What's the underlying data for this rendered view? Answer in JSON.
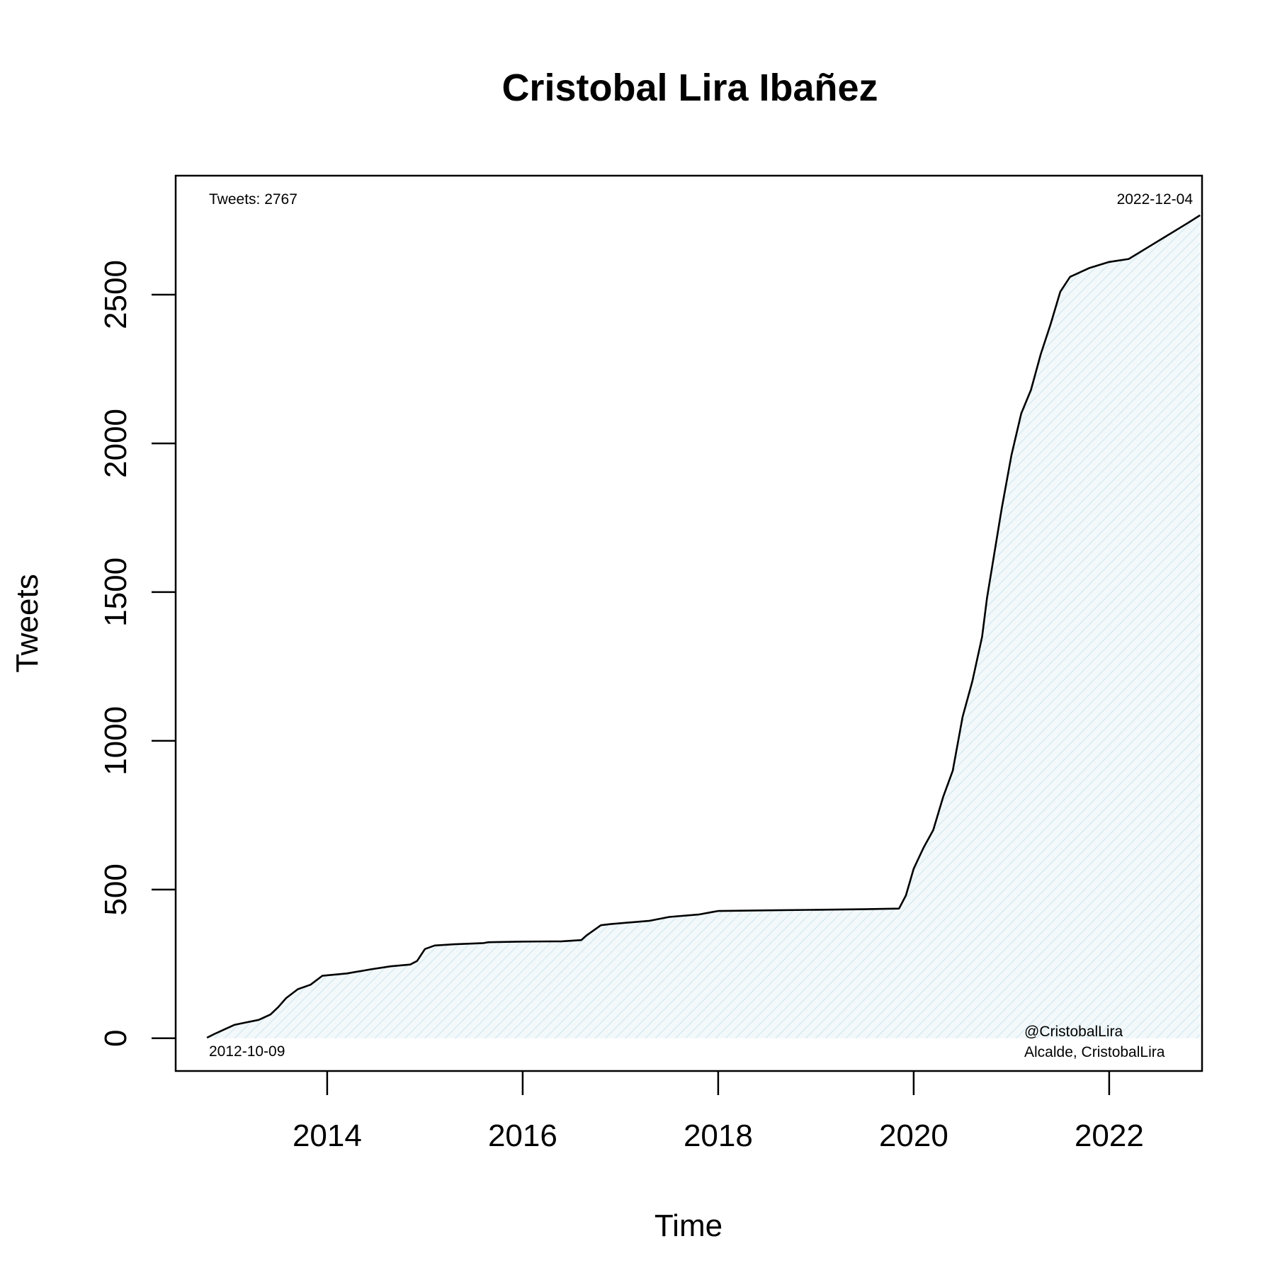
{
  "chart_data": {
    "type": "area",
    "title": "Cristobal Lira Ibañez",
    "xlabel": "Time",
    "ylabel": "Tweets",
    "xlim": [
      2012.45,
      2022.95
    ],
    "ylim": [
      -110,
      2900
    ],
    "x_ticks": [
      2014,
      2016,
      2018,
      2020,
      2022
    ],
    "x_tick_labels": [
      "2014",
      "2016",
      "2018",
      "2020",
      "2022"
    ],
    "y_ticks": [
      0,
      500,
      1000,
      1500,
      2000,
      2500
    ],
    "y_tick_labels": [
      "0",
      "500",
      "1000",
      "1500",
      "2000",
      "2500"
    ],
    "grid": false,
    "legend": "none",
    "colors": {
      "line": "#000000",
      "fill": "#e6f2f6"
    },
    "annotations": {
      "top_left": "Tweets: 2767",
      "top_right": "2022-12-04",
      "bottom_left": "2012-10-09",
      "bottom_right_line1": "@CristobalLira",
      "bottom_right_line2": "Alcalde, CristobalLira"
    },
    "series": [
      {
        "x": [
          2012.77,
          2012.85,
          2012.95,
          2013.05,
          2013.15,
          2013.3,
          2013.42,
          2013.5,
          2013.58,
          2013.7,
          2013.83,
          2013.95,
          2014.2,
          2014.45,
          2014.65,
          2014.85,
          2014.92,
          2015.0,
          2015.1,
          2015.3,
          2015.6,
          2015.65,
          2016.0,
          2016.4,
          2016.6,
          2016.65,
          2016.8,
          2016.9,
          2017.3,
          2017.5,
          2017.8,
          2017.95,
          2018.0,
          2018.5,
          2019.0,
          2019.5,
          2019.85,
          2019.92,
          2020.0,
          2020.1,
          2020.2,
          2020.3,
          2020.4,
          2020.5,
          2020.6,
          2020.7,
          2020.75,
          2020.8,
          2020.9,
          2021.0,
          2021.1,
          2021.2,
          2021.3,
          2021.4,
          2021.5,
          2021.6,
          2021.8,
          2022.0,
          2022.2,
          2022.4,
          2022.6,
          2022.8,
          2022.93
        ],
        "y": [
          2,
          15,
          30,
          45,
          52,
          62,
          80,
          105,
          135,
          165,
          180,
          210,
          218,
          232,
          242,
          248,
          260,
          300,
          312,
          316,
          320,
          323,
          325,
          326,
          330,
          345,
          380,
          384,
          395,
          408,
          416,
          425,
          428,
          430,
          432,
          434,
          436,
          480,
          570,
          640,
          700,
          810,
          900,
          1080,
          1200,
          1350,
          1480,
          1580,
          1780,
          1960,
          2100,
          2180,
          2300,
          2400,
          2510,
          2560,
          2590,
          2610,
          2620,
          2660,
          2700,
          2740,
          2767
        ]
      }
    ]
  }
}
